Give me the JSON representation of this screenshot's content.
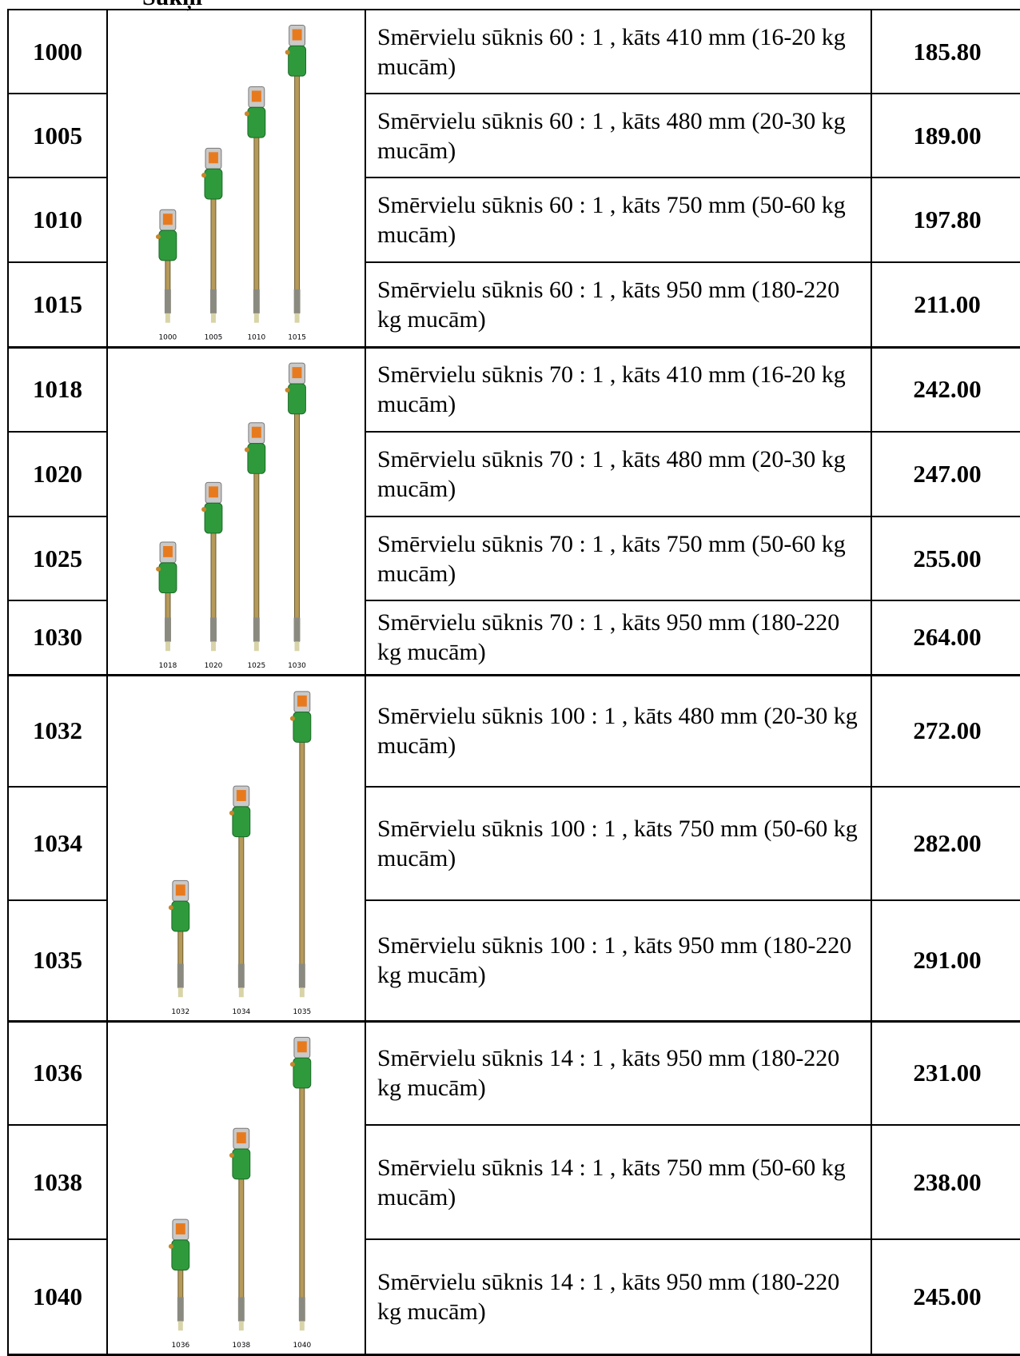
{
  "header": {
    "title": "Sūkņi"
  },
  "groups": [
    {
      "image_labels": [
        "1000",
        "1005",
        "1010",
        "1015"
      ],
      "rows": [
        {
          "code": "1000",
          "description": "Smērvielu sūknis 60 : 1 , kāts 410 mm (16-20 kg mucām)",
          "price": "185.80"
        },
        {
          "code": "1005",
          "description": "Smērvielu sūknis 60 : 1 , kāts 480 mm (20-30 kg mucām)",
          "price": "189.00"
        },
        {
          "code": "1010",
          "description": "Smērvielu sūknis 60 : 1 , kāts 750 mm (50-60 kg mucām)",
          "price": "197.80"
        },
        {
          "code": "1015",
          "description": "Smērvielu sūknis 60 : 1 , kāts 950 mm (180-220 kg mucām)",
          "price": "211.00"
        }
      ]
    },
    {
      "image_labels": [
        "1018",
        "1020",
        "1025",
        "1030"
      ],
      "rows": [
        {
          "code": "1018",
          "description": "Smērvielu sūknis 70 : 1 , kāts 410 mm (16-20 kg mucām)",
          "price": "242.00"
        },
        {
          "code": "1020",
          "description": "Smērvielu sūknis 70 : 1 , kāts 480 mm (20-30 kg mucām)",
          "price": "247.00"
        },
        {
          "code": "1025",
          "description": "Smērvielu sūknis 70 : 1 , kāts 750 mm (50-60 kg mucām)",
          "price": "255.00"
        },
        {
          "code": "1030",
          "description": "Smērvielu sūknis 70 : 1 , kāts 950 mm (180-220 kg mucām)",
          "price": "264.00"
        }
      ]
    },
    {
      "image_labels": [
        "1032",
        "1034",
        "1035"
      ],
      "rows": [
        {
          "code": "1032",
          "description": "Smērvielu sūknis 100 : 1 , kāts 480 mm (20-30 kg mucām)",
          "price": "272.00"
        },
        {
          "code": "1034",
          "description": "Smērvielu sūknis 100 : 1 , kāts 750 mm (50-60 kg mucām)",
          "price": "282.00"
        },
        {
          "code": "1035",
          "description": "Smērvielu sūknis 100 : 1 , kāts 950 mm (180-220 kg mucām)",
          "price": "291.00"
        }
      ]
    },
    {
      "image_labels": [
        "1036",
        "1038",
        "1040"
      ],
      "rows": [
        {
          "code": "1036",
          "description": "Smērvielu sūknis 14 : 1 , kāts 950 mm (180-220 kg mucām)",
          "price": "231.00"
        },
        {
          "code": "1038",
          "description": "Smērvielu sūknis 14 : 1 , kāts 750 mm (50-60 kg mucām)",
          "price": "238.00"
        },
        {
          "code": "1040",
          "description": "Smērvielu sūknis 14 : 1 , kāts 950 mm (180-220 kg mucām)",
          "price": "245.00"
        }
      ]
    }
  ]
}
